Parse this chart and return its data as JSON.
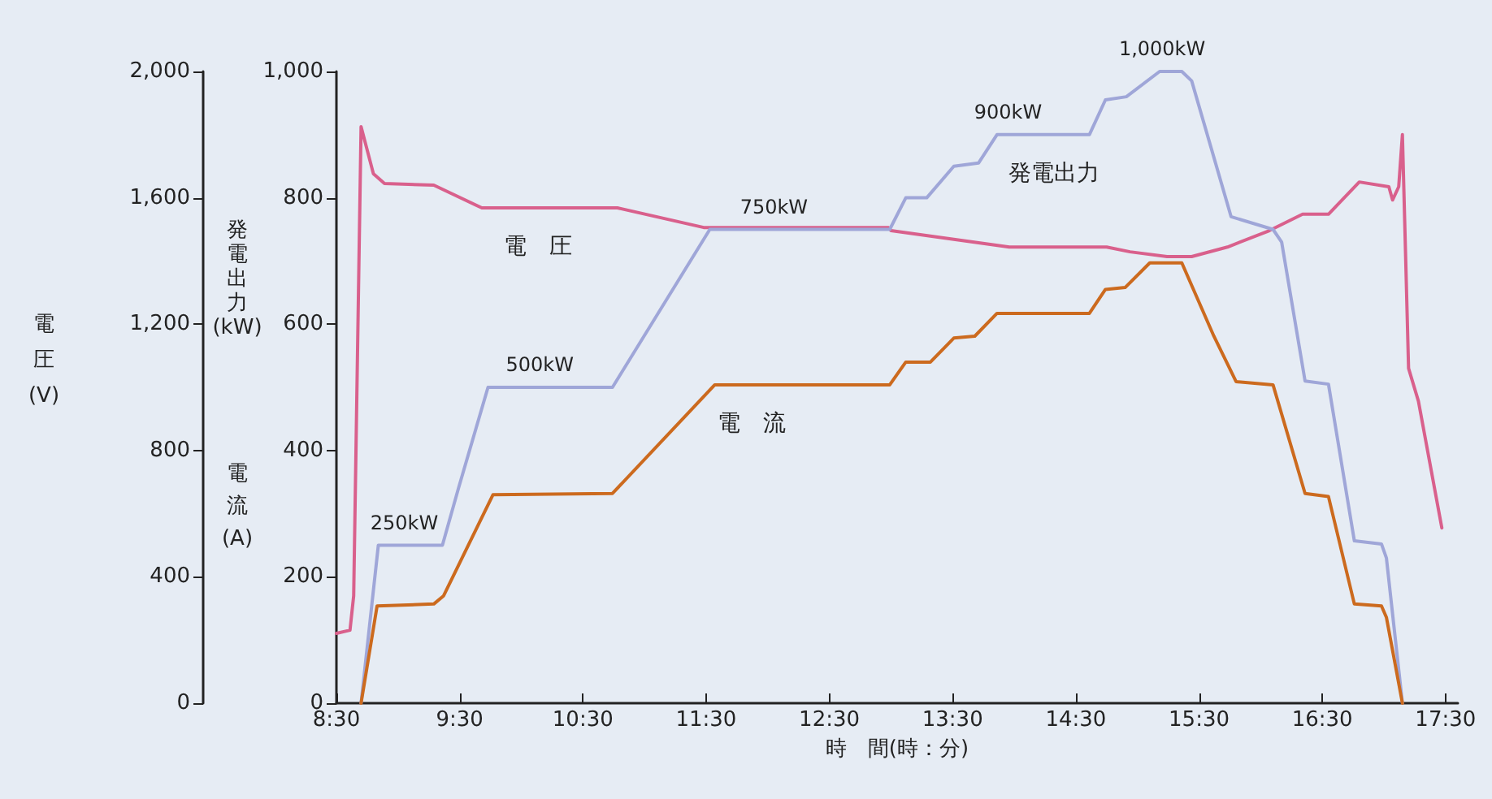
{
  "chart_data": {
    "type": "line",
    "xlabel": "時　間(時：分)",
    "ylabel": "発電出力(kW)",
    "y2label": "電圧(V)",
    "xlim": [
      8.5,
      17.6
    ],
    "xticks": [
      {
        "value": 8.5,
        "label": "8:30"
      },
      {
        "value": 9.5,
        "label": "9:30"
      },
      {
        "value": 10.5,
        "label": "10:30"
      },
      {
        "value": 11.5,
        "label": "11:30"
      },
      {
        "value": 12.5,
        "label": "12:30"
      },
      {
        "value": 13.5,
        "label": "13:30"
      },
      {
        "value": 14.5,
        "label": "14:30"
      },
      {
        "value": 15.5,
        "label": "15:30"
      },
      {
        "value": 16.5,
        "label": "16:30"
      },
      {
        "value": 17.5,
        "label": "17:30"
      }
    ],
    "ylim": [
      0,
      1000
    ],
    "yticks": [
      0,
      200,
      400,
      600,
      800,
      {
        "value": 1000,
        "label": "1,000"
      }
    ],
    "y2lim": [
      0,
      2000
    ],
    "y2ticks": [
      0,
      400,
      800,
      {
        "value": 1200,
        "label": "1,200"
      },
      {
        "value": 1600,
        "label": "1,600"
      },
      {
        "value": 2000,
        "label": "2,000"
      }
    ],
    "grid": false,
    "legend": false,
    "marker": "none",
    "line_style": "solid",
    "series": [
      {
        "name": "電圧",
        "color": "#d9608c",
        "axis": "y2",
        "x": [
          8.5,
          8.61,
          8.64,
          8.7,
          8.8,
          8.89,
          9.29,
          9.68,
          10.78,
          11.48,
          12.98,
          13.0,
          13.96,
          14.75,
          14.94,
          15.24,
          15.44,
          15.73,
          16.07,
          16.34,
          16.55,
          16.8,
          17.04,
          17.07,
          17.12,
          17.15,
          17.2,
          17.28,
          17.47
        ],
        "values": [
          221,
          231,
          340,
          1825,
          1676,
          1645,
          1640,
          1568,
          1568,
          1506,
          1506,
          1496,
          1444,
          1444,
          1429,
          1414,
          1414,
          1444,
          1496,
          1548,
          1548,
          1650,
          1635,
          1593,
          1635,
          1800,
          1060,
          956,
          555
        ]
      },
      {
        "name": "発電出力",
        "color": "#9fa6d8",
        "axis": "y",
        "x": [
          8.7,
          8.84,
          9.36,
          9.49,
          9.73,
          10.74,
          11.53,
          12.99,
          13.12,
          13.29,
          13.51,
          13.71,
          13.86,
          14.61,
          14.74,
          14.91,
          15.18,
          15.36,
          15.44,
          15.76,
          16.1,
          16.17,
          16.36,
          16.55,
          16.76,
          16.98,
          17.02,
          17.15
        ],
        "values": [
          0,
          250,
          250,
          340,
          500,
          500,
          750,
          750,
          800,
          800,
          850,
          855,
          900,
          900,
          955,
          960,
          1000,
          1000,
          985,
          770,
          750,
          730,
          510,
          505,
          257,
          252,
          230,
          0
        ]
      },
      {
        "name": "電流",
        "color": "#cc6a1e",
        "axis": "y",
        "x": [
          8.7,
          8.83,
          9.29,
          9.37,
          9.77,
          10.74,
          11.57,
          12.99,
          13.12,
          13.32,
          13.51,
          13.68,
          13.86,
          14.61,
          14.74,
          14.9,
          15.1,
          15.36,
          15.62,
          15.8,
          16.1,
          16.36,
          16.55,
          16.76,
          16.98,
          17.02,
          17.15
        ],
        "values": [
          0,
          154,
          157,
          170,
          330,
          332,
          504,
          504,
          540,
          540,
          578,
          581,
          617,
          617,
          655,
          658,
          697,
          697,
          581,
          509,
          504,
          332,
          327,
          157,
          154,
          136,
          0
        ]
      }
    ],
    "annotations": [
      "電流(A)",
      {
        "text": "250kW",
        "x": 9.05,
        "y": 250
      },
      {
        "text": "500kW",
        "x": 10.15,
        "y": 500
      },
      {
        "text": "750kW",
        "x": 12.05,
        "y": 750
      },
      {
        "text": "900kW",
        "x": 13.95,
        "y": 900
      },
      {
        "text": "1,000kW",
        "x": 15.2,
        "y": 1000
      }
    ]
  }
}
